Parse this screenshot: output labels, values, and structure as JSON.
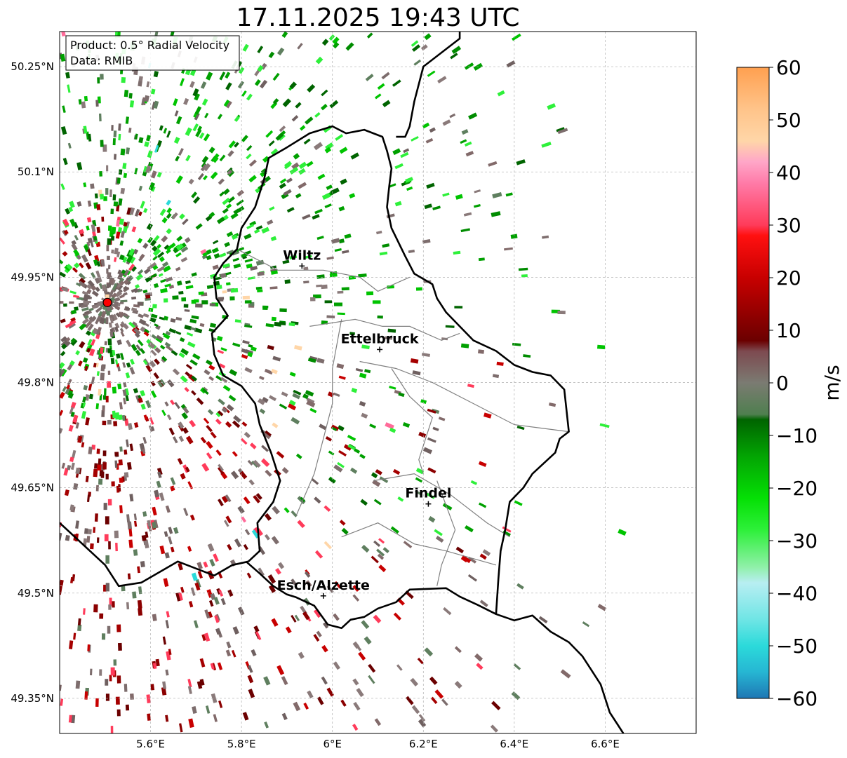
{
  "title": "17.11.2025 19:43 UTC",
  "info": {
    "product_line": "Product: 0.5° Radial Velocity",
    "data_line": "Data: RMIB"
  },
  "map": {
    "lon_range": [
      5.4,
      6.8
    ],
    "lat_range": [
      49.3,
      50.3
    ],
    "lat_ticks": [
      {
        "value": 50.25,
        "label": "50.25°N"
      },
      {
        "value": 50.1,
        "label": "50.1°N"
      },
      {
        "value": 49.95,
        "label": "49.95°N"
      },
      {
        "value": 49.8,
        "label": "49.8°N"
      },
      {
        "value": 49.65,
        "label": "49.65°N"
      },
      {
        "value": 49.5,
        "label": "49.5°N"
      },
      {
        "value": 49.35,
        "label": "49.35°N"
      }
    ],
    "lon_ticks": [
      {
        "value": 5.6,
        "label": "5.6°E"
      },
      {
        "value": 5.8,
        "label": "5.8°E"
      },
      {
        "value": 6.0,
        "label": "6°E"
      },
      {
        "value": 6.2,
        "label": "6.2°E"
      },
      {
        "value": 6.4,
        "label": "6.4°E"
      },
      {
        "value": 6.6,
        "label": "6.6°E"
      }
    ],
    "radar_site": {
      "lon": 5.505,
      "lat": 49.914
    },
    "cities": [
      {
        "name": "Wiltz",
        "lon": 5.933,
        "lat": 49.966
      },
      {
        "name": "Ettelbruck",
        "lon": 6.104,
        "lat": 49.847
      },
      {
        "name": "Findel",
        "lon": 6.211,
        "lat": 49.627
      },
      {
        "name": "Esch/Alzette",
        "lon": 5.98,
        "lat": 49.496
      }
    ],
    "border": [
      [
        5.81,
        49.545
      ],
      [
        5.84,
        49.528
      ],
      [
        5.87,
        49.51
      ],
      [
        5.9,
        49.498
      ],
      [
        5.92,
        49.494
      ],
      [
        5.96,
        49.482
      ],
      [
        5.99,
        49.455
      ],
      [
        6.02,
        49.45
      ],
      [
        6.04,
        49.462
      ],
      [
        6.07,
        49.466
      ],
      [
        6.1,
        49.478
      ],
      [
        6.14,
        49.487
      ],
      [
        6.17,
        49.505
      ],
      [
        6.25,
        49.507
      ],
      [
        6.28,
        49.495
      ],
      [
        6.32,
        49.483
      ],
      [
        6.36,
        49.47
      ],
      [
        6.4,
        49.461
      ],
      [
        6.44,
        49.468
      ],
      [
        6.48,
        49.445
      ],
      [
        6.52,
        49.43
      ],
      [
        6.55,
        49.41
      ],
      [
        6.57,
        49.39
      ],
      [
        6.59,
        49.37
      ],
      [
        6.6,
        49.35
      ],
      [
        6.61,
        49.33
      ],
      [
        6.63,
        49.31
      ],
      [
        6.64,
        49.3
      ]
    ],
    "lux_border": [
      [
        5.815,
        49.545
      ],
      [
        5.84,
        49.56
      ],
      [
        5.835,
        49.6
      ],
      [
        5.87,
        49.63
      ],
      [
        5.885,
        49.66
      ],
      [
        5.865,
        49.7
      ],
      [
        5.84,
        49.74
      ],
      [
        5.83,
        49.77
      ],
      [
        5.8,
        49.795
      ],
      [
        5.76,
        49.81
      ],
      [
        5.74,
        49.84
      ],
      [
        5.735,
        49.87
      ],
      [
        5.77,
        49.895
      ],
      [
        5.745,
        49.92
      ],
      [
        5.74,
        49.95
      ],
      [
        5.76,
        49.97
      ],
      [
        5.79,
        49.99
      ],
      [
        5.8,
        50.02
      ],
      [
        5.83,
        50.05
      ],
      [
        5.85,
        50.09
      ],
      [
        5.86,
        50.12
      ],
      [
        5.9,
        50.135
      ],
      [
        5.95,
        50.155
      ],
      [
        6.0,
        50.165
      ],
      [
        6.03,
        50.155
      ],
      [
        6.07,
        50.16
      ],
      [
        6.11,
        50.15
      ],
      [
        6.12,
        50.13
      ],
      [
        6.13,
        50.105
      ],
      [
        6.125,
        50.08
      ],
      [
        6.12,
        50.05
      ],
      [
        6.13,
        50.02
      ],
      [
        6.16,
        49.98
      ],
      [
        6.18,
        49.955
      ],
      [
        6.22,
        49.94
      ],
      [
        6.23,
        49.92
      ],
      [
        6.25,
        49.9
      ],
      [
        6.28,
        49.88
      ],
      [
        6.31,
        49.86
      ],
      [
        6.36,
        49.845
      ],
      [
        6.4,
        49.825
      ],
      [
        6.44,
        49.815
      ],
      [
        6.48,
        49.81
      ],
      [
        6.51,
        49.79
      ],
      [
        6.52,
        49.73
      ],
      [
        6.5,
        49.72
      ],
      [
        6.49,
        49.7
      ],
      [
        6.44,
        49.67
      ],
      [
        6.42,
        49.65
      ],
      [
        6.39,
        49.63
      ],
      [
        6.38,
        49.59
      ],
      [
        6.37,
        49.56
      ],
      [
        6.365,
        49.52
      ],
      [
        6.36,
        49.47
      ]
    ],
    "north_border": [
      [
        6.28,
        50.32
      ],
      [
        6.28,
        50.29
      ],
      [
        6.24,
        50.27
      ],
      [
        6.2,
        50.25
      ],
      [
        6.18,
        50.2
      ],
      [
        6.17,
        50.165
      ],
      [
        6.16,
        50.15
      ],
      [
        6.14,
        50.15
      ]
    ],
    "cantons": [
      [
        [
          5.79,
          49.99
        ],
        [
          5.88,
          49.96
        ],
        [
          5.98,
          49.96
        ],
        [
          6.06,
          49.95
        ],
        [
          6.1,
          49.93
        ],
        [
          6.17,
          49.95
        ]
      ],
      [
        [
          5.95,
          49.88
        ],
        [
          6.05,
          49.89
        ],
        [
          6.11,
          49.88
        ],
        [
          6.17,
          49.88
        ],
        [
          6.24,
          49.86
        ],
        [
          6.28,
          49.87
        ]
      ],
      [
        [
          6.02,
          49.89
        ],
        [
          6.0,
          49.82
        ],
        [
          6.0,
          49.77
        ],
        [
          5.98,
          49.72
        ],
        [
          5.96,
          49.67
        ],
        [
          5.92,
          49.61
        ]
      ],
      [
        [
          6.06,
          49.83
        ],
        [
          6.14,
          49.82
        ],
        [
          6.22,
          49.8
        ],
        [
          6.28,
          49.78
        ],
        [
          6.4,
          49.74
        ],
        [
          6.52,
          49.73
        ]
      ],
      [
        [
          6.09,
          49.66
        ],
        [
          6.18,
          49.67
        ],
        [
          6.26,
          49.64
        ],
        [
          6.34,
          49.6
        ],
        [
          6.39,
          49.58
        ]
      ],
      [
        [
          6.02,
          49.58
        ],
        [
          6.1,
          49.6
        ],
        [
          6.18,
          49.57
        ],
        [
          6.25,
          49.56
        ],
        [
          6.36,
          49.54
        ]
      ],
      [
        [
          6.13,
          49.82
        ],
        [
          6.17,
          49.78
        ],
        [
          6.22,
          49.75
        ],
        [
          6.19,
          49.69
        ],
        [
          6.2,
          49.67
        ]
      ],
      [
        [
          6.23,
          49.66
        ],
        [
          6.27,
          49.59
        ],
        [
          6.24,
          49.54
        ],
        [
          6.23,
          49.51
        ]
      ]
    ]
  },
  "colorbar": {
    "unit": "m/s",
    "min": -60,
    "max": 60,
    "ticks": [
      {
        "value": 60,
        "label": "60"
      },
      {
        "value": 50,
        "label": "50"
      },
      {
        "value": 40,
        "label": "40"
      },
      {
        "value": 30,
        "label": "30"
      },
      {
        "value": 20,
        "label": "20"
      },
      {
        "value": 10,
        "label": "10"
      },
      {
        "value": 0,
        "label": "0"
      },
      {
        "value": -10,
        "label": "−10"
      },
      {
        "value": -20,
        "label": "−20"
      },
      {
        "value": -30,
        "label": "−30"
      },
      {
        "value": -40,
        "label": "−40"
      },
      {
        "value": -50,
        "label": "−50"
      },
      {
        "value": -60,
        "label": "−60"
      }
    ],
    "stops": [
      {
        "value": -60,
        "color": "#1f77b4"
      },
      {
        "value": -55,
        "color": "#26b6d3"
      },
      {
        "value": -50,
        "color": "#2bdada"
      },
      {
        "value": -45,
        "color": "#6fe5e5"
      },
      {
        "value": -38,
        "color": "#b8eef2"
      },
      {
        "value": -35,
        "color": "#8ff0a8"
      },
      {
        "value": -28,
        "color": "#2ef03a"
      },
      {
        "value": -22,
        "color": "#05e005"
      },
      {
        "value": -14,
        "color": "#03a503"
      },
      {
        "value": -7,
        "color": "#006400"
      },
      {
        "value": -6,
        "color": "#4f7f4f"
      },
      {
        "value": 0,
        "color": "#7b7b72"
      },
      {
        "value": 6,
        "color": "#7d4a50"
      },
      {
        "value": 8,
        "color": "#6b0000"
      },
      {
        "value": 20,
        "color": "#c80000"
      },
      {
        "value": 28,
        "color": "#ff1010"
      },
      {
        "value": 30,
        "color": "#ff3b5a"
      },
      {
        "value": 38,
        "color": "#ff7ba8"
      },
      {
        "value": 42,
        "color": "#ffa6c8"
      },
      {
        "value": 46,
        "color": "#ffd6a8"
      },
      {
        "value": 52,
        "color": "#ffc48a"
      },
      {
        "value": 60,
        "color": "#ffa050"
      }
    ]
  },
  "palette": {
    "outbound": [
      "#8b0000",
      "#a50000",
      "#c80000",
      "#6b0000",
      "#ff3b5a"
    ],
    "inbound": [
      "#00a000",
      "#00c400",
      "#008c00",
      "#006400",
      "#2ef03a"
    ],
    "near_zero": [
      "#7d6d6d",
      "#826a6a",
      "#5f7f5f",
      "#8a7a7a",
      "#6f6060"
    ],
    "rare": [
      "#2bdada",
      "#ff6b9a",
      "#ffd6a8"
    ]
  }
}
